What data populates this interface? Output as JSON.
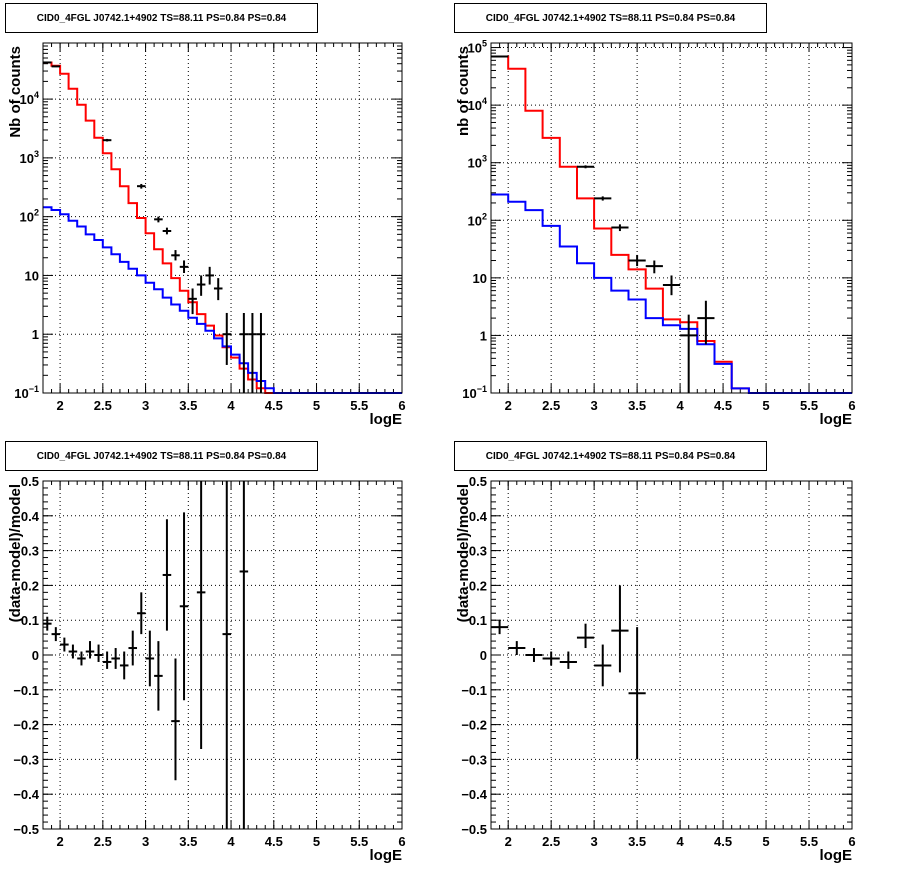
{
  "chart_data": [
    {
      "type": "step-histogram",
      "title": "CID0_4FGL J0742.1+4902 TS=88.11 PS=0.84 PS=0.84",
      "xlabel": "logE",
      "ylabel": "Nb of counts",
      "log_y": true,
      "xlim": [
        1.8,
        6.0
      ],
      "ylim": [
        0.1,
        90000
      ],
      "x_ticks": [
        "2",
        "2.5",
        "3",
        "3.5",
        "4",
        "4.5",
        "5",
        "5.5",
        "6"
      ],
      "y_ticks": [
        "10^-1",
        "1",
        "10",
        "10^2",
        "10^3",
        "10^4"
      ],
      "grid": true,
      "bin_edges": [
        1.8,
        1.9,
        2.0,
        2.1,
        2.2,
        2.3,
        2.4,
        2.5,
        2.6,
        2.7,
        2.8,
        2.9,
        3.0,
        3.1,
        3.2,
        3.3,
        3.4,
        3.5,
        3.6,
        3.7,
        3.8,
        3.9,
        4.0,
        4.1,
        4.2,
        4.3,
        4.4,
        4.5,
        4.6,
        4.7,
        4.8,
        4.9,
        5.0,
        5.1,
        5.2,
        5.3,
        5.4,
        5.5,
        5.6,
        5.7,
        5.8,
        5.9,
        6.0
      ],
      "series": [
        {
          "color": "#ff0000",
          "values": [
            42000,
            37000,
            27000,
            15000,
            8000,
            4300,
            2200,
            1200,
            640,
            330,
            170,
            95,
            52,
            28,
            16,
            9,
            5.5,
            3.5,
            2.2,
            1.4,
            0.95,
            0.6,
            0.4,
            0.26,
            0.17,
            0.12,
            0.1,
            0.1,
            0.1,
            0.1,
            0.1,
            0.1,
            0.1,
            0.1,
            0.1,
            0.1,
            0.1,
            0.1,
            0.1,
            0.1,
            0.1,
            0.1
          ]
        },
        {
          "color": "#0000ff",
          "values": [
            145,
            130,
            110,
            85,
            68,
            50,
            40,
            30,
            23,
            17,
            13,
            10,
            7.5,
            5.8,
            4.2,
            3.2,
            2.5,
            1.9,
            1.5,
            1.15,
            0.85,
            0.62,
            0.45,
            0.32,
            0.22,
            0.16,
            0.12,
            0.1,
            0.1,
            0.1,
            0.1,
            0.1,
            0.1,
            0.1,
            0.1,
            0.1,
            0.1,
            0.1,
            0.1,
            0.1,
            0.1,
            0.1
          ]
        }
      ],
      "points": [
        {
          "x": 1.85,
          "y": 42000,
          "ylo": 41000,
          "yhi": 43000
        },
        {
          "x": 1.95,
          "y": 36000,
          "ylo": 35000,
          "yhi": 37000
        },
        {
          "x": 2.55,
          "y": 2000,
          "ylo": 1900,
          "yhi": 2100
        },
        {
          "x": 2.95,
          "y": 330,
          "ylo": 300,
          "yhi": 360
        },
        {
          "x": 3.15,
          "y": 90,
          "ylo": 80,
          "yhi": 100
        },
        {
          "x": 3.25,
          "y": 57,
          "ylo": 50,
          "yhi": 65
        },
        {
          "x": 3.35,
          "y": 22,
          "ylo": 18,
          "yhi": 27
        },
        {
          "x": 3.45,
          "y": 14,
          "ylo": 11,
          "yhi": 18
        },
        {
          "x": 3.55,
          "y": 4,
          "ylo": 2.2,
          "yhi": 6
        },
        {
          "x": 3.65,
          "y": 7,
          "ylo": 4.5,
          "yhi": 10
        },
        {
          "x": 3.75,
          "y": 10,
          "ylo": 7,
          "yhi": 14
        },
        {
          "x": 3.85,
          "y": 6,
          "ylo": 3.8,
          "yhi": 9
        },
        {
          "x": 3.95,
          "y": 1,
          "ylo": 0.3,
          "yhi": 2.3
        },
        {
          "x": 4.15,
          "y": 1,
          "ylo": 0.1,
          "yhi": 2.3
        },
        {
          "x": 4.25,
          "y": 1,
          "ylo": 0.1,
          "yhi": 2.3
        },
        {
          "x": 4.35,
          "y": 1,
          "ylo": 0.1,
          "yhi": 2.3
        }
      ]
    },
    {
      "type": "step-histogram",
      "title": "CID0_4FGL J0742.1+4902 TS=88.11 PS=0.84 PS=0.84",
      "xlabel": "logE",
      "ylabel": "nb of counts",
      "log_y": true,
      "xlim": [
        1.8,
        6.0
      ],
      "ylim": [
        0.1,
        120000
      ],
      "x_ticks": [
        "2",
        "2.5",
        "3",
        "3.5",
        "4",
        "4.5",
        "5",
        "5.5",
        "6"
      ],
      "y_ticks": [
        "10^-1",
        "1",
        "10",
        "10^2",
        "10^3",
        "10^4",
        "10^5"
      ],
      "grid": true,
      "bin_edges": [
        1.8,
        2.0,
        2.2,
        2.4,
        2.6,
        2.8,
        3.0,
        3.2,
        3.4,
        3.6,
        3.8,
        4.0,
        4.2,
        4.4,
        4.6,
        4.8,
        5.0,
        5.2,
        5.4,
        5.6,
        5.8,
        6.0
      ],
      "series": [
        {
          "color": "#ff0000",
          "values": [
            70000,
            43000,
            8000,
            2700,
            850,
            240,
            72,
            25,
            14,
            6.5,
            1.9,
            1.7,
            0.8,
            0.35,
            0.12,
            0.1,
            0.1,
            0.1,
            0.1,
            0.1,
            0.1
          ]
        },
        {
          "color": "#0000ff",
          "values": [
            280,
            210,
            150,
            80,
            35,
            18,
            10,
            6,
            4.2,
            2.0,
            1.5,
            1.3,
            0.7,
            0.32,
            0.12,
            0.1,
            0.1,
            0.1,
            0.1,
            0.1,
            0.1
          ]
        }
      ],
      "points": [
        {
          "x": 1.9,
          "y": 70000,
          "ylo": 68000,
          "yhi": 72000
        },
        {
          "x": 2.9,
          "y": 850,
          "ylo": 800,
          "yhi": 900
        },
        {
          "x": 3.1,
          "y": 240,
          "ylo": 220,
          "yhi": 260
        },
        {
          "x": 3.3,
          "y": 75,
          "ylo": 65,
          "yhi": 85
        },
        {
          "x": 3.5,
          "y": 20,
          "ylo": 16,
          "yhi": 25
        },
        {
          "x": 3.7,
          "y": 16,
          "ylo": 12,
          "yhi": 20
        },
        {
          "x": 3.9,
          "y": 7.5,
          "ylo": 5,
          "yhi": 11
        },
        {
          "x": 4.1,
          "y": 1,
          "ylo": 0.1,
          "yhi": 2.3
        },
        {
          "x": 4.3,
          "y": 2,
          "ylo": 0.7,
          "yhi": 4
        }
      ]
    },
    {
      "type": "scatter",
      "title": "CID0_4FGL J0742.1+4902 TS=88.11 PS=0.84 PS=0.84",
      "xlabel": "logE",
      "ylabel": "(data-model)/model",
      "xlim": [
        1.8,
        6.0
      ],
      "ylim": [
        -0.5,
        0.5
      ],
      "x_ticks": [
        "2",
        "2.5",
        "3",
        "3.5",
        "4",
        "4.5",
        "5",
        "5.5",
        "6"
      ],
      "y_ticks": [
        "-0.5",
        "-0.4",
        "-0.3",
        "-0.2",
        "-0.1",
        "0",
        "0.1",
        "0.2",
        "0.3",
        "0.4",
        "0.5"
      ],
      "grid": true,
      "xerr": 0.05,
      "points": [
        {
          "x": 1.85,
          "y": 0.09,
          "ylo": 0.07,
          "yhi": 0.11
        },
        {
          "x": 1.95,
          "y": 0.06,
          "ylo": 0.04,
          "yhi": 0.08
        },
        {
          "x": 2.05,
          "y": 0.03,
          "ylo": 0.01,
          "yhi": 0.05
        },
        {
          "x": 2.15,
          "y": 0.01,
          "ylo": -0.01,
          "yhi": 0.03
        },
        {
          "x": 2.25,
          "y": -0.01,
          "ylo": -0.03,
          "yhi": 0.01
        },
        {
          "x": 2.35,
          "y": 0.01,
          "ylo": -0.01,
          "yhi": 0.04
        },
        {
          "x": 2.45,
          "y": 0.0,
          "ylo": -0.02,
          "yhi": 0.03
        },
        {
          "x": 2.55,
          "y": -0.02,
          "ylo": -0.04,
          "yhi": 0.01
        },
        {
          "x": 2.65,
          "y": -0.01,
          "ylo": -0.04,
          "yhi": 0.02
        },
        {
          "x": 2.75,
          "y": -0.03,
          "ylo": -0.07,
          "yhi": 0.01
        },
        {
          "x": 2.85,
          "y": 0.02,
          "ylo": -0.03,
          "yhi": 0.07
        },
        {
          "x": 2.95,
          "y": 0.12,
          "ylo": 0.06,
          "yhi": 0.18
        },
        {
          "x": 3.05,
          "y": -0.01,
          "ylo": -0.09,
          "yhi": 0.07
        },
        {
          "x": 3.15,
          "y": -0.06,
          "ylo": -0.16,
          "yhi": 0.04
        },
        {
          "x": 3.25,
          "y": 0.23,
          "ylo": 0.07,
          "yhi": 0.39
        },
        {
          "x": 3.35,
          "y": -0.19,
          "ylo": -0.36,
          "yhi": -0.01
        },
        {
          "x": 3.45,
          "y": 0.14,
          "ylo": -0.13,
          "yhi": 0.41
        },
        {
          "x": 3.65,
          "y": 0.18,
          "ylo": -0.27,
          "yhi": 0.63
        },
        {
          "x": 3.95,
          "y": 0.06,
          "ylo": -0.6,
          "yhi": 0.72
        },
        {
          "x": 4.15,
          "y": 0.24,
          "ylo": -0.6,
          "yhi": 1.0
        }
      ]
    },
    {
      "type": "scatter",
      "title": "CID0_4FGL J0742.1+4902 TS=88.11 PS=0.84 PS=0.84",
      "xlabel": "logE",
      "ylabel": "(data-model)/model",
      "xlim": [
        1.8,
        6.0
      ],
      "ylim": [
        -0.5,
        0.5
      ],
      "x_ticks": [
        "2",
        "2.5",
        "3",
        "3.5",
        "4",
        "4.5",
        "5",
        "5.5",
        "6"
      ],
      "y_ticks": [
        "-0.5",
        "-0.4",
        "-0.3",
        "-0.2",
        "-0.1",
        "0",
        "0.1",
        "0.2",
        "0.3",
        "0.4",
        "0.5"
      ],
      "grid": true,
      "xerr": 0.1,
      "points": [
        {
          "x": 1.9,
          "y": 0.08,
          "ylo": 0.06,
          "yhi": 0.1
        },
        {
          "x": 2.1,
          "y": 0.02,
          "ylo": 0.0,
          "yhi": 0.04
        },
        {
          "x": 2.3,
          "y": 0.0,
          "ylo": -0.02,
          "yhi": 0.02
        },
        {
          "x": 2.5,
          "y": -0.01,
          "ylo": -0.03,
          "yhi": 0.01
        },
        {
          "x": 2.7,
          "y": -0.02,
          "ylo": -0.04,
          "yhi": 0.01
        },
        {
          "x": 2.9,
          "y": 0.05,
          "ylo": 0.02,
          "yhi": 0.09
        },
        {
          "x": 3.1,
          "y": -0.03,
          "ylo": -0.09,
          "yhi": 0.03
        },
        {
          "x": 3.3,
          "y": 0.07,
          "ylo": -0.05,
          "yhi": 0.2
        },
        {
          "x": 3.5,
          "y": -0.11,
          "ylo": -0.3,
          "yhi": 0.08
        }
      ]
    }
  ]
}
